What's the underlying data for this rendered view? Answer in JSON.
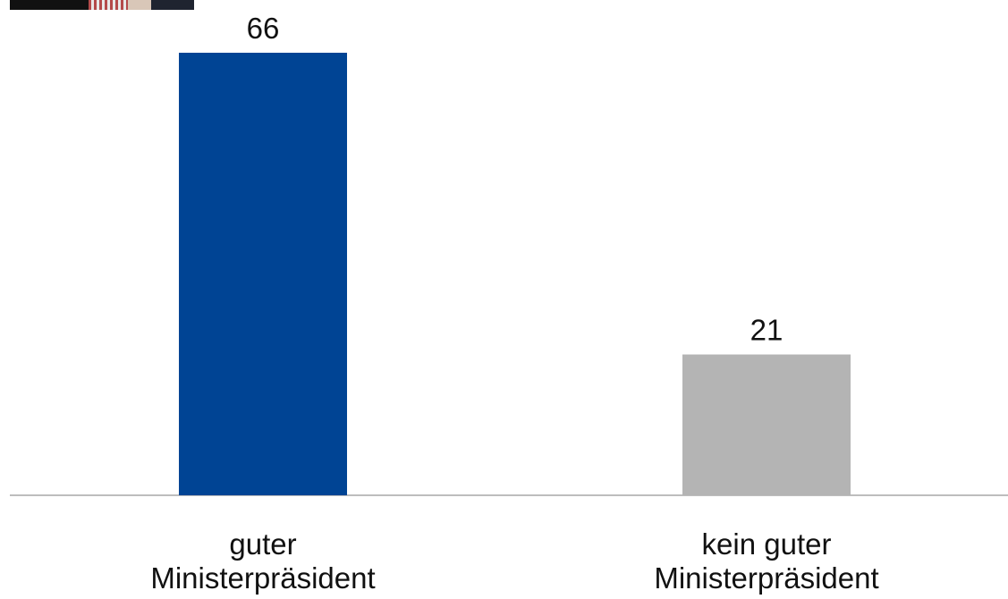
{
  "chart_data": {
    "type": "bar",
    "categories": [
      [
        "guter",
        "Ministerpräsident"
      ],
      [
        "kein guter",
        "Ministerpräsident"
      ]
    ],
    "values": [
      66,
      21
    ],
    "colors": [
      "#004494",
      "#b4b4b4"
    ],
    "data_labels": [
      "66",
      "21"
    ],
    "title": "",
    "xlabel": "",
    "ylabel": "",
    "ylim": [
      0,
      70
    ],
    "grid": false,
    "legend": "none"
  },
  "header": {
    "photo_icon": "portrait-photo"
  }
}
